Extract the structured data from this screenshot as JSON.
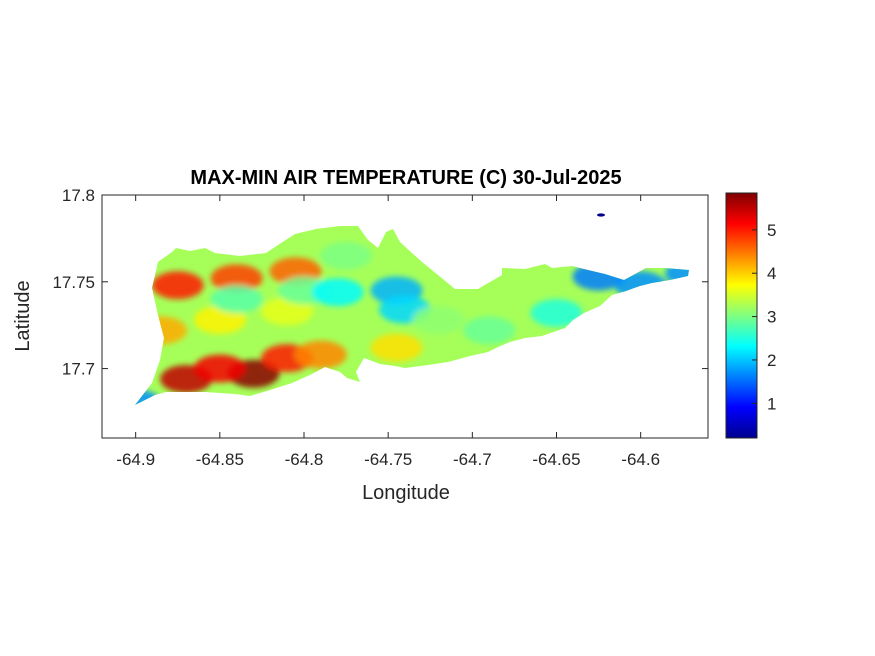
{
  "chart_data": {
    "type": "heatmap",
    "title": "MAX-MIN AIR TEMPERATURE (C) 30-Jul-2025",
    "xlabel": "Longitude",
    "ylabel": "Latitude",
    "xlim": [
      -64.92,
      -64.56
    ],
    "ylim": [
      17.66,
      17.8
    ],
    "xticks": [
      -64.9,
      -64.85,
      -64.8,
      -64.75,
      -64.7,
      -64.65,
      -64.6
    ],
    "xtick_labels": [
      "-64.9",
      "-64.85",
      "-64.8",
      "-64.75",
      "-64.7",
      "-64.65",
      "-64.6"
    ],
    "yticks": [
      17.7,
      17.75,
      17.8
    ],
    "ytick_labels": [
      "17.7",
      "17.75",
      "17.8"
    ],
    "colorbar": {
      "colormap": "jet",
      "range": [
        0.2,
        5.85
      ],
      "ticks": [
        1,
        2,
        3,
        4,
        5
      ],
      "tick_labels": [
        "1",
        "2",
        "3",
        "4",
        "5"
      ]
    },
    "hotspots": [
      {
        "lon": -64.83,
        "lat": 17.697,
        "value": 5.8
      },
      {
        "lon": -64.87,
        "lat": 17.694,
        "value": 5.5
      },
      {
        "lon": -64.85,
        "lat": 17.7,
        "value": 5.2
      },
      {
        "lon": -64.875,
        "lat": 17.748,
        "value": 5.0
      },
      {
        "lon": -64.84,
        "lat": 17.752,
        "value": 4.8
      },
      {
        "lon": -64.805,
        "lat": 17.756,
        "value": 4.6
      },
      {
        "lon": -64.81,
        "lat": 17.706,
        "value": 5.0
      },
      {
        "lon": -64.79,
        "lat": 17.708,
        "value": 4.4
      },
      {
        "lon": -64.745,
        "lat": 17.712,
        "value": 3.9
      },
      {
        "lon": -64.885,
        "lat": 17.722,
        "value": 4.2
      },
      {
        "lon": -64.85,
        "lat": 17.728,
        "value": 3.8
      },
      {
        "lon": -64.81,
        "lat": 17.733,
        "value": 3.6
      },
      {
        "lon": -64.84,
        "lat": 17.74,
        "value": 2.8
      },
      {
        "lon": -64.8,
        "lat": 17.745,
        "value": 2.9
      },
      {
        "lon": -64.78,
        "lat": 17.744,
        "value": 2.3
      },
      {
        "lon": -64.745,
        "lat": 17.745,
        "value": 1.9
      },
      {
        "lon": -64.74,
        "lat": 17.734,
        "value": 2.1
      },
      {
        "lon": -64.775,
        "lat": 17.765,
        "value": 3.0
      },
      {
        "lon": -64.72,
        "lat": 17.728,
        "value": 3.1
      },
      {
        "lon": -64.69,
        "lat": 17.722,
        "value": 2.9
      },
      {
        "lon": -64.65,
        "lat": 17.732,
        "value": 2.5
      },
      {
        "lon": -64.625,
        "lat": 17.753,
        "value": 1.6
      },
      {
        "lon": -64.6,
        "lat": 17.748,
        "value": 1.7
      },
      {
        "lon": -64.57,
        "lat": 17.755,
        "value": 1.7
      },
      {
        "lon": -64.9,
        "lat": 17.68,
        "value": 1.7
      },
      {
        "lon": -64.625,
        "lat": 17.788,
        "value": 0.4
      }
    ]
  }
}
